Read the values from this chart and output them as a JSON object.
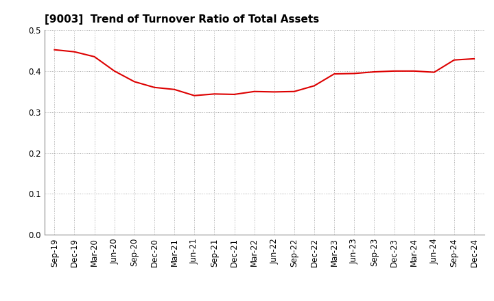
{
  "title": "[9003]  Trend of Turnover Ratio of Total Assets",
  "line_color": "#dd0000",
  "line_width": 1.5,
  "background_color": "#ffffff",
  "grid_color": "#aaaaaa",
  "ylim": [
    0.0,
    0.5
  ],
  "yticks": [
    0.0,
    0.1,
    0.2,
    0.3,
    0.4,
    0.5
  ],
  "x_labels": [
    "Sep-19",
    "Dec-19",
    "Mar-20",
    "Jun-20",
    "Sep-20",
    "Dec-20",
    "Mar-21",
    "Jun-21",
    "Sep-21",
    "Dec-21",
    "Mar-22",
    "Jun-22",
    "Sep-22",
    "Dec-22",
    "Mar-23",
    "Jun-23",
    "Sep-23",
    "Dec-23",
    "Mar-24",
    "Jun-24",
    "Sep-24",
    "Dec-24"
  ],
  "values": [
    0.452,
    0.447,
    0.435,
    0.4,
    0.374,
    0.36,
    0.355,
    0.34,
    0.344,
    0.343,
    0.35,
    0.349,
    0.35,
    0.364,
    0.393,
    0.394,
    0.398,
    0.4,
    0.4,
    0.397,
    0.427,
    0.43
  ],
  "title_fontsize": 11,
  "tick_fontsize": 8.5
}
